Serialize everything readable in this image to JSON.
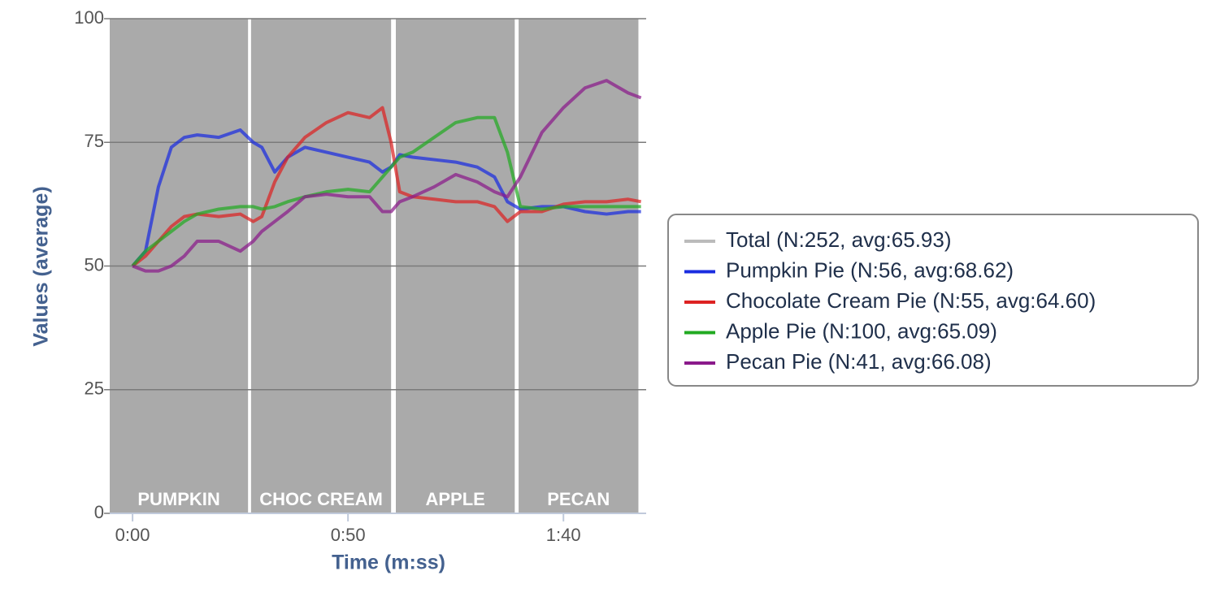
{
  "chart_data": {
    "type": "line",
    "x_label": "Time (m:ss)",
    "y_label": "Values (average)",
    "xlim": [
      -5.3,
      119.2
    ],
    "ylim": [
      0,
      100
    ],
    "xticks": [
      {
        "value": 0,
        "label": "0:00"
      },
      {
        "value": 50,
        "label": "0:50"
      },
      {
        "value": 100,
        "label": "1:40"
      }
    ],
    "yticks": [
      0,
      25,
      50,
      75,
      100
    ],
    "grid": true,
    "legend": "right",
    "regions": [
      {
        "label": "PUMPKIN",
        "start": -5.3,
        "end": 26.8
      },
      {
        "label": "CHOC CREAM",
        "start": 27.5,
        "end": 60.0
      },
      {
        "label": "APPLE",
        "start": 61.1,
        "end": 88.7
      },
      {
        "label": "PECAN",
        "start": 89.6,
        "end": 117.4
      }
    ],
    "x": [
      0,
      3,
      6,
      9,
      12,
      15,
      20,
      25,
      28,
      30,
      33,
      36,
      40,
      45,
      50,
      55,
      58,
      60,
      62,
      65,
      70,
      75,
      80,
      84,
      87,
      90,
      95,
      100,
      105,
      110,
      115,
      118
    ],
    "series": [
      {
        "name": "Total (N:252, avg:65.93)",
        "color": "#bbbbbb",
        "hidden": true
      },
      {
        "name": "Pumpkin Pie (N:56, avg:68.62)",
        "color": "#1a2ce0",
        "values": [
          50,
          53,
          66,
          74,
          76,
          76.5,
          76,
          77.5,
          75,
          74,
          69,
          72,
          74,
          73,
          72,
          71,
          69,
          70,
          72.5,
          72,
          71.5,
          71,
          70,
          68,
          63,
          61.5,
          62,
          62,
          61,
          60.5,
          61,
          61
        ]
      },
      {
        "name": "Chocolate Cream Pie (N:55, avg:64.60)",
        "color": "#dd2222",
        "values": [
          50,
          52,
          55,
          58,
          60,
          60.5,
          60,
          60.5,
          59,
          60,
          67,
          72,
          76,
          79,
          81,
          80,
          82,
          75,
          65,
          64,
          63.5,
          63,
          63,
          62,
          59,
          61,
          61,
          62.5,
          63,
          63,
          63.5,
          63
        ]
      },
      {
        "name": "Apple Pie (N:100, avg:65.09)",
        "color": "#22aa22",
        "values": [
          50,
          53,
          55,
          57,
          59,
          60.5,
          61.5,
          62,
          62,
          61.5,
          62,
          63,
          64,
          65,
          65.5,
          65,
          68,
          70,
          72,
          73,
          76,
          79,
          80,
          80,
          73,
          62,
          61.5,
          62,
          62,
          62,
          62,
          62
        ]
      },
      {
        "name": "Pecan Pie (N:41, avg:66.08)",
        "color": "#8a1a8a",
        "values": [
          50,
          49,
          49,
          50,
          52,
          55,
          55,
          53,
          55,
          57,
          59,
          61,
          64,
          64.5,
          64,
          64,
          61,
          61,
          63,
          64,
          66,
          68.5,
          67,
          65,
          64,
          68,
          77,
          82,
          86,
          87.5,
          85,
          84
        ]
      }
    ]
  }
}
